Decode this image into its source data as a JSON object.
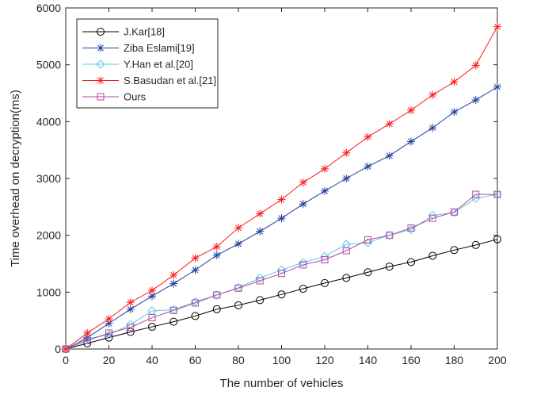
{
  "chart_data": {
    "type": "line",
    "title": "",
    "xlabel": "The number of vehicles",
    "ylabel": "Time overhead on decryption(ms)",
    "xlim": [
      0,
      200
    ],
    "ylim": [
      0,
      6000
    ],
    "x_ticks": [
      "0",
      "20",
      "40",
      "60",
      "80",
      "100",
      "120",
      "140",
      "160",
      "180",
      "200"
    ],
    "y_ticks": [
      "0",
      "1000",
      "2000",
      "3000",
      "4000",
      "5000",
      "6000"
    ],
    "grid": false,
    "legend_position": "top-left",
    "x": [
      0,
      10,
      20,
      30,
      40,
      50,
      60,
      70,
      80,
      90,
      100,
      110,
      120,
      130,
      140,
      150,
      160,
      170,
      180,
      190,
      200
    ],
    "series": [
      {
        "name": "J.Kar[18]",
        "color": "#000000",
        "marker": "circle",
        "values": [
          0,
          100,
          200,
          300,
          390,
          480,
          580,
          700,
          770,
          860,
          960,
          1060,
          1160,
          1250,
          1350,
          1450,
          1530,
          1640,
          1740,
          1830,
          1930
        ]
      },
      {
        "name": "Ziba Eslami[19]",
        "color": "#1f3f9f",
        "marker": "asterisk",
        "values": [
          0,
          200,
          450,
          700,
          930,
          1150,
          1390,
          1650,
          1850,
          2070,
          2300,
          2550,
          2780,
          3000,
          3210,
          3400,
          3650,
          3890,
          4170,
          4380,
          4610
        ]
      },
      {
        "name": "Y.Han et al.[20]",
        "color": "#5bc8e6",
        "marker": "diamond",
        "values": [
          0,
          180,
          250,
          430,
          670,
          690,
          830,
          950,
          1080,
          1250,
          1390,
          1520,
          1630,
          1840,
          1870,
          2000,
          2100,
          2350,
          2400,
          2650,
          2720
        ]
      },
      {
        "name": "S.Basudan et al.[21]",
        "color": "#ff1a1a",
        "marker": "asterisk",
        "values": [
          0,
          280,
          530,
          820,
          1030,
          1300,
          1600,
          1800,
          2130,
          2380,
          2630,
          2930,
          3170,
          3450,
          3730,
          3960,
          4200,
          4470,
          4700,
          4990,
          5670
        ]
      },
      {
        "name": "Ours",
        "color": "#b5479d",
        "marker": "square",
        "values": [
          0,
          150,
          280,
          380,
          550,
          680,
          810,
          950,
          1070,
          1200,
          1330,
          1480,
          1570,
          1730,
          1920,
          2000,
          2130,
          2300,
          2410,
          2720,
          2720
        ]
      }
    ]
  }
}
